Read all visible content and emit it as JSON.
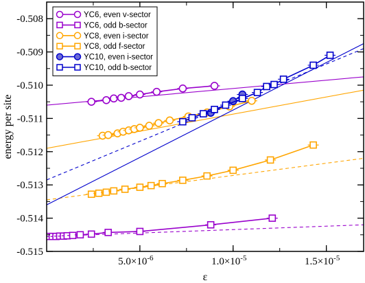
{
  "chart_data": {
    "type": "scatter",
    "xlabel": "ε",
    "ylabel": "energy per site",
    "xlim": [
      0,
      1.7e-05
    ],
    "ylim": [
      -0.515,
      -0.5075
    ],
    "x_ticks": [
      {
        "value": 5e-06,
        "label": "5.0×10",
        "exp": "-6"
      },
      {
        "value": 1e-05,
        "label": "1.0×10",
        "exp": "-5"
      },
      {
        "value": 1.5e-05,
        "label": "1.5×10",
        "exp": "-5"
      }
    ],
    "y_ticks": [
      {
        "value": -0.508,
        "label": "-0.508"
      },
      {
        "value": -0.509,
        "label": "-0.509"
      },
      {
        "value": -0.51,
        "label": "-0.510"
      },
      {
        "value": -0.511,
        "label": "-0.511"
      },
      {
        "value": -0.512,
        "label": "-0.512"
      },
      {
        "value": -0.513,
        "label": "-0.513"
      },
      {
        "value": -0.514,
        "label": "-0.514"
      },
      {
        "value": -0.515,
        "label": "-0.515"
      }
    ],
    "legend_position": "top-left",
    "series": [
      {
        "name": "YC6, even v-sector",
        "color": "#9900cc",
        "marker": "circle",
        "filled": false,
        "x": [
          2.4e-06,
          3.2e-06,
          3.6e-06,
          4e-06,
          4.4e-06,
          5e-06,
          5.9e-06,
          7.3e-06,
          9e-06
        ],
        "y": [
          -0.5105,
          -0.51045,
          -0.5104,
          -0.51038,
          -0.51033,
          -0.51028,
          -0.5102,
          -0.5101,
          -0.51002
        ],
        "fit": {
          "x": [
            0,
            1.7e-05
          ],
          "y": [
            -0.5106,
            -0.50975
          ],
          "dashed": false
        }
      },
      {
        "name": "YC6, odd b-sector",
        "color": "#9900cc",
        "marker": "square",
        "filled": false,
        "x": [
          1e-07,
          3e-07,
          5e-07,
          7e-07,
          9e-07,
          1.1e-06,
          1.4e-06,
          1.8e-06,
          2.4e-06,
          3.3e-06,
          5e-06,
          8.8e-06,
          1.21e-05
        ],
        "y": [
          -0.51455,
          -0.51455,
          -0.51455,
          -0.51454,
          -0.51454,
          -0.51453,
          -0.51452,
          -0.5145,
          -0.51448,
          -0.51443,
          -0.5144,
          -0.5142,
          -0.514
        ],
        "fit": {
          "x": [
            0,
            1.7e-05
          ],
          "y": [
            -0.51455,
            -0.5142
          ],
          "dashed": true
        }
      },
      {
        "name": "YC8, even i-sector",
        "color": "#ffa500",
        "marker": "circle",
        "filled": false,
        "x": [
          3e-06,
          3.3e-06,
          3.8e-06,
          4.1e-06,
          4.4e-06,
          4.7e-06,
          5e-06,
          5.5e-06,
          6e-06,
          6.6e-06,
          7.6e-06,
          8.6e-06,
          9.8e-06,
          1.1e-05
        ],
        "y": [
          -0.51152,
          -0.5115,
          -0.51145,
          -0.5114,
          -0.51136,
          -0.51132,
          -0.51128,
          -0.51122,
          -0.51114,
          -0.51106,
          -0.51094,
          -0.51082,
          -0.51064,
          -0.51047
        ],
        "fit": {
          "x": [
            0,
            1.7e-05
          ],
          "y": [
            -0.5119,
            -0.51015
          ],
          "dashed": false
        }
      },
      {
        "name": "YC8, odd f-sector",
        "color": "#ffa500",
        "marker": "square",
        "filled": false,
        "x": [
          2.4e-06,
          2.8e-06,
          3.2e-06,
          3.6e-06,
          4.2e-06,
          5e-06,
          5.6e-06,
          6.2e-06,
          7.3e-06,
          8.6e-06,
          1e-05,
          1.2e-05,
          1.43e-05
        ],
        "y": [
          -0.51328,
          -0.51325,
          -0.51322,
          -0.51318,
          -0.51313,
          -0.51307,
          -0.51302,
          -0.51296,
          -0.51286,
          -0.51273,
          -0.51256,
          -0.51225,
          -0.5118
        ],
        "fit": {
          "x": [
            0,
            1.7e-05
          ],
          "y": [
            -0.51345,
            -0.5122
          ],
          "dashed": true
        }
      },
      {
        "name": "YC10, even i-sector",
        "color": "#0000cc",
        "marker": "circle",
        "filled": true,
        "x": [
          8.8e-06,
          1e-05,
          1.05e-05
        ],
        "y": [
          -0.51083,
          -0.51048,
          -0.51028
        ],
        "fit": {
          "x": [
            0,
            1.7e-05
          ],
          "y": [
            -0.5136,
            -0.50875
          ],
          "dashed": false
        }
      },
      {
        "name": "YC10, odd b-sector",
        "color": "#0000cc",
        "marker": "square",
        "filled": false,
        "x": [
          7.3e-06,
          7.8e-06,
          8.4e-06,
          9e-06,
          9.6e-06,
          1.05e-05,
          1.13e-05,
          1.18e-05,
          1.22e-05,
          1.27e-05,
          1.43e-05,
          1.52e-05
        ],
        "y": [
          -0.5111,
          -0.51098,
          -0.51086,
          -0.51073,
          -0.5106,
          -0.5104,
          -0.51022,
          -0.51004,
          -0.50998,
          -0.50982,
          -0.5094,
          -0.5091
        ],
        "fit": {
          "x": [
            0,
            1.7e-05
          ],
          "y": [
            -0.51285,
            -0.5089
          ],
          "dashed": true
        }
      }
    ]
  }
}
